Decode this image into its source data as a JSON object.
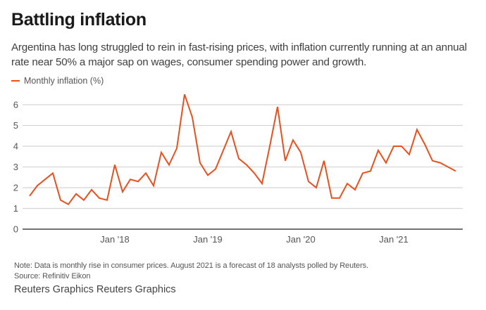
{
  "header": {
    "title": "Battling inflation",
    "subtitle": "Argentina has long struggled to rein in fast-rising prices, with inflation currently running at an annual rate near 50% a major sap on wages, consumer spending power and growth."
  },
  "footer": {
    "note": "Note: Data is monthly rise in consumer prices. August 2021 is a forecast of 18 analysts polled by Reuters.",
    "source": "Source: Refinitiv Eikon",
    "credit": "Reuters Graphics Reuters Graphics"
  },
  "colors": {
    "series": "#e8501e",
    "grid": "#d4d4d4",
    "axis": "#555555"
  },
  "chart_data": {
    "type": "line",
    "title": "Battling inflation",
    "xlabel": "",
    "ylabel": "",
    "legend": {
      "position": "top-left",
      "entries": [
        "Monthly inflation (%)"
      ]
    },
    "grid": true,
    "ylim": [
      0,
      6.5
    ],
    "yticks": [
      0,
      1,
      2,
      3,
      4,
      5,
      6
    ],
    "xticks": [
      {
        "label": "Jan '18",
        "month": "2018-01"
      },
      {
        "label": "Jan '19",
        "month": "2019-01"
      },
      {
        "label": "Jan '20",
        "month": "2020-01"
      },
      {
        "label": "Jan '21",
        "month": "2021-01"
      }
    ],
    "x": [
      "2017-01",
      "2017-02",
      "2017-03",
      "2017-04",
      "2017-05",
      "2017-06",
      "2017-07",
      "2017-08",
      "2017-09",
      "2017-10",
      "2017-11",
      "2017-12",
      "2018-01",
      "2018-02",
      "2018-03",
      "2018-04",
      "2018-05",
      "2018-06",
      "2018-07",
      "2018-08",
      "2018-09",
      "2018-10",
      "2018-11",
      "2018-12",
      "2019-01",
      "2019-02",
      "2019-03",
      "2019-04",
      "2019-05",
      "2019-06",
      "2019-07",
      "2019-08",
      "2019-09",
      "2019-10",
      "2019-11",
      "2019-12",
      "2020-01",
      "2020-02",
      "2020-03",
      "2020-04",
      "2020-05",
      "2020-06",
      "2020-07",
      "2020-08",
      "2020-09",
      "2020-10",
      "2020-11",
      "2020-12",
      "2021-01",
      "2021-02",
      "2021-03",
      "2021-04",
      "2021-05",
      "2021-06",
      "2021-07",
      "2021-08"
    ],
    "series": [
      {
        "name": "Monthly inflation (%)",
        "values": [
          1.6,
          2.1,
          2.4,
          2.7,
          1.4,
          1.2,
          1.7,
          1.4,
          1.9,
          1.5,
          1.4,
          3.1,
          1.8,
          2.4,
          2.3,
          2.7,
          2.1,
          3.7,
          3.1,
          3.9,
          6.5,
          5.4,
          3.2,
          2.6,
          2.9,
          3.8,
          4.7,
          3.4,
          3.1,
          2.7,
          2.2,
          4.0,
          5.9,
          3.3,
          4.3,
          3.7,
          2.3,
          2.0,
          3.3,
          1.5,
          1.5,
          2.2,
          1.9,
          2.7,
          2.8,
          3.8,
          3.2,
          4.0,
          4.0,
          3.6,
          4.8,
          4.1,
          3.3,
          3.2,
          3.0,
          2.8
        ]
      }
    ]
  }
}
